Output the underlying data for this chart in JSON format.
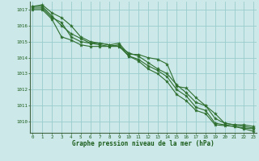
{
  "title": "Graphe pression niveau de la mer (hPa)",
  "xlabel_color": "#1a5c1a",
  "background_color": "#cce8e8",
  "grid_color": "#99cccc",
  "line_color": "#2d6e2d",
  "x": [
    0,
    1,
    2,
    3,
    4,
    5,
    6,
    7,
    8,
    9,
    10,
    11,
    12,
    13,
    14,
    15,
    16,
    17,
    18,
    19,
    20,
    21,
    22,
    23
  ],
  "series": [
    [
      1017.2,
      1017.3,
      1016.8,
      1016.5,
      1016.0,
      1015.3,
      1015.0,
      1014.9,
      1014.8,
      1014.9,
      1014.2,
      1014.2,
      1014.0,
      1013.9,
      1013.6,
      1012.2,
      1012.1,
      1011.5,
      1011.0,
      1010.5,
      1009.9,
      1009.8,
      1009.8,
      1009.7
    ],
    [
      1017.2,
      1017.2,
      1016.6,
      1016.0,
      1015.5,
      1015.2,
      1014.9,
      1014.9,
      1014.8,
      1014.7,
      1014.3,
      1014.1,
      1013.7,
      1013.3,
      1013.0,
      1012.3,
      1011.8,
      1011.2,
      1011.0,
      1010.2,
      1009.9,
      1009.8,
      1009.7,
      1009.6
    ],
    [
      1017.1,
      1017.1,
      1016.5,
      1016.2,
      1015.3,
      1015.0,
      1014.9,
      1014.8,
      1014.7,
      1014.7,
      1014.1,
      1013.9,
      1013.5,
      1013.2,
      1012.8,
      1012.0,
      1011.6,
      1010.9,
      1010.7,
      1009.9,
      1009.8,
      1009.7,
      1009.6,
      1009.55
    ],
    [
      1017.0,
      1017.0,
      1016.4,
      1015.3,
      1015.1,
      1014.8,
      1014.7,
      1014.7,
      1014.7,
      1014.8,
      1014.1,
      1013.8,
      1013.3,
      1013.0,
      1012.5,
      1011.7,
      1011.3,
      1010.7,
      1010.5,
      1009.8,
      1009.75,
      1009.7,
      1009.55,
      1009.4
    ]
  ],
  "ylim": [
    1009.3,
    1017.5
  ],
  "yticks": [
    1010,
    1011,
    1012,
    1013,
    1014,
    1015,
    1016,
    1017
  ],
  "xlim": [
    -0.3,
    23.3
  ],
  "xticks": [
    0,
    1,
    2,
    3,
    4,
    5,
    6,
    7,
    8,
    9,
    10,
    11,
    12,
    13,
    14,
    15,
    16,
    17,
    18,
    19,
    20,
    21,
    22,
    23
  ]
}
